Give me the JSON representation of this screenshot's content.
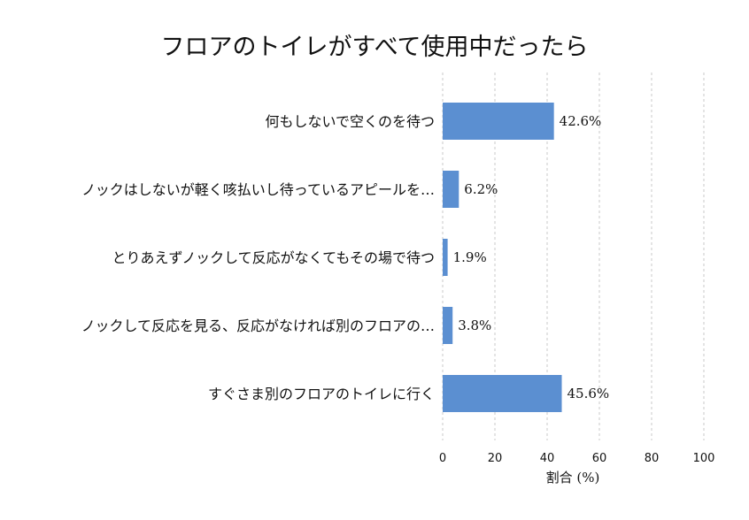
{
  "chart_data": {
    "type": "bar",
    "orientation": "horizontal",
    "title": "フロアのトイレがすべて使用中だったら",
    "categories": [
      "何もしないで空くのを待つ",
      "ノックはしないが軽く咳払いし待っているアピールを…",
      "とりあえずノックして反応がなくてもその場で待つ",
      "ノックして反応を見る、反応がなければ別のフロアの…",
      "すぐさま別のフロアのトイレに行く"
    ],
    "values": [
      42.6,
      6.2,
      1.9,
      3.8,
      45.6
    ],
    "value_labels": [
      "42.6%",
      "6.2%",
      "1.9%",
      "3.8%",
      "45.6%"
    ],
    "xlabel": "割合 (%)",
    "ylabel": "",
    "xlim": [
      0,
      100
    ],
    "x_ticks": [
      "0",
      "20",
      "40",
      "60",
      "80",
      "100"
    ],
    "grid": "vertical dashed",
    "bar_color": "#5b8fd1"
  }
}
